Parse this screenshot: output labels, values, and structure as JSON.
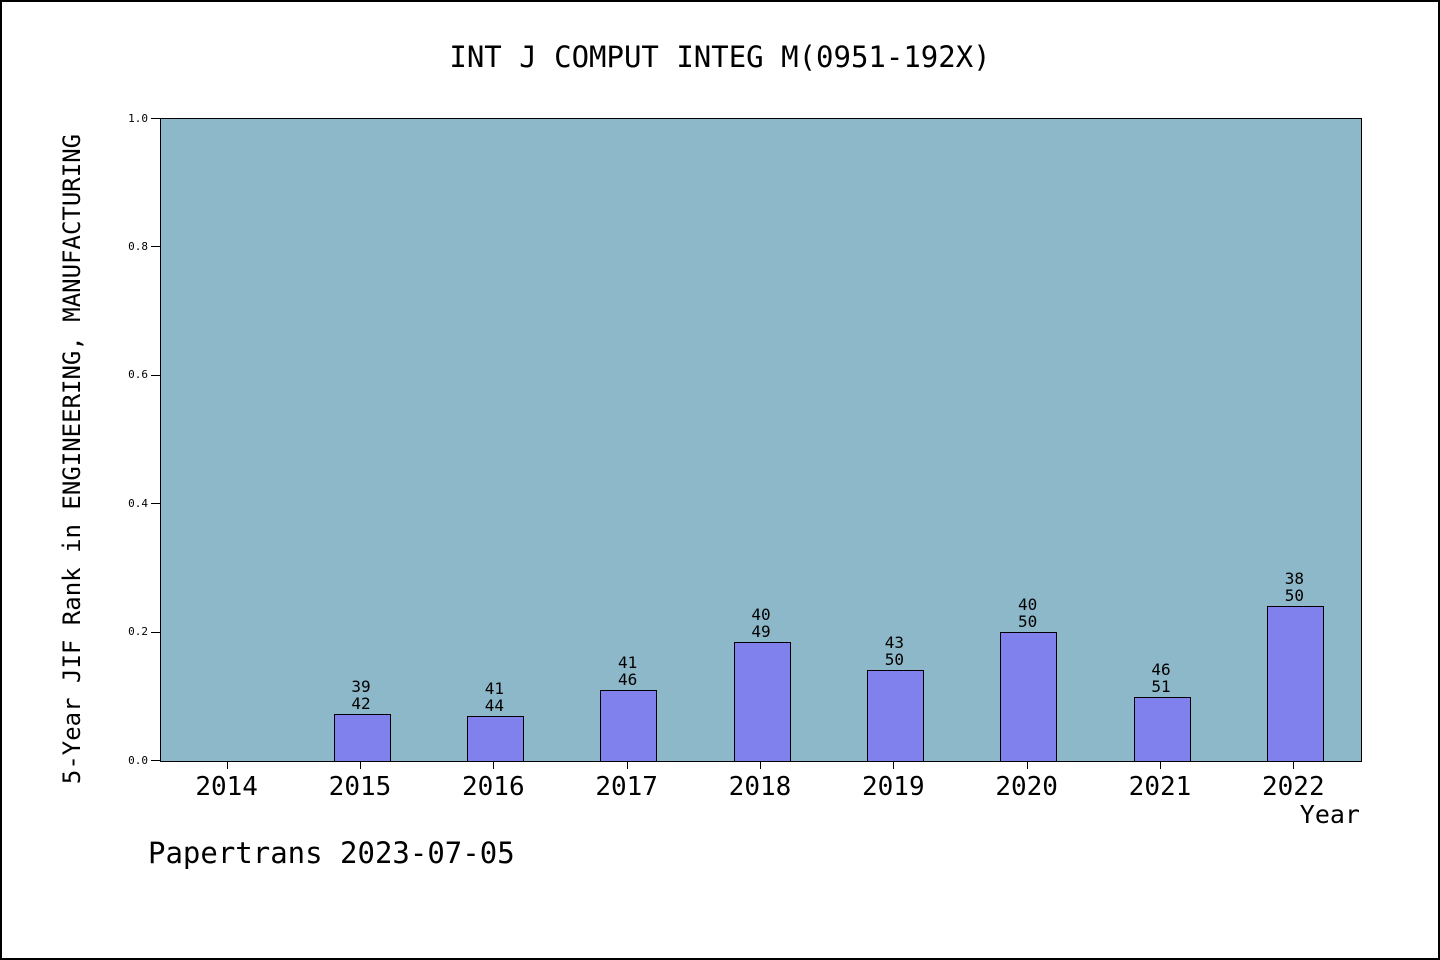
{
  "chart_data": {
    "type": "bar",
    "title": "INT J COMPUT INTEG M(0951-192X)",
    "xlabel": "Year",
    "ylabel": "5-Year JIF Rank in ENGINEERING, MANUFACTURING",
    "footer": "Papertrans 2023-07-05",
    "categories": [
      "2014",
      "2015",
      "2016",
      "2017",
      "2018",
      "2019",
      "2020",
      "2021",
      "2022"
    ],
    "ylim": [
      0.0,
      1.0
    ],
    "yticks": [
      0.0,
      0.2,
      0.4,
      0.6,
      0.8,
      1.0
    ],
    "grid": false,
    "legend": "none",
    "bars": [
      {
        "year": "2015",
        "rank": 39,
        "total": 42,
        "value": 0.0714
      },
      {
        "year": "2016",
        "rank": 41,
        "total": 44,
        "value": 0.0682
      },
      {
        "year": "2017",
        "rank": 41,
        "total": 46,
        "value": 0.1087
      },
      {
        "year": "2018",
        "rank": 40,
        "total": 49,
        "value": 0.1837
      },
      {
        "year": "2019",
        "rank": 43,
        "total": 50,
        "value": 0.14
      },
      {
        "year": "2020",
        "rank": 40,
        "total": 50,
        "value": 0.2
      },
      {
        "year": "2021",
        "rank": 46,
        "total": 51,
        "value": 0.098
      },
      {
        "year": "2022",
        "rank": 38,
        "total": 50,
        "value": 0.24
      }
    ],
    "colors": {
      "plot_bg": "#8db8c9",
      "bar_fill": "#8181ee",
      "bar_border": "#000000",
      "text": "#000000",
      "page_bg": "#ffffff"
    }
  }
}
